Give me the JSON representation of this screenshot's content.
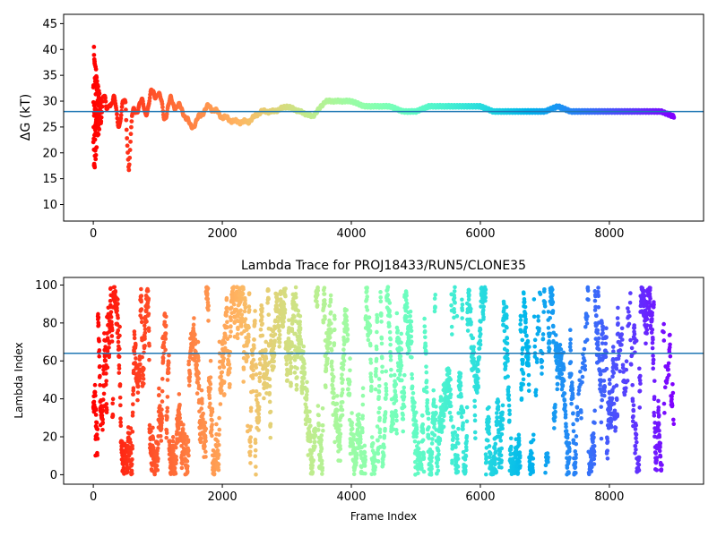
{
  "chart_data": [
    {
      "type": "scatter",
      "title": "",
      "xlabel": "",
      "ylabel": "ΔG (kT)",
      "xlim": [
        -460,
        9460
      ],
      "ylim": [
        6.8,
        46.8
      ],
      "x_ticks": [
        0,
        2000,
        4000,
        6000,
        8000
      ],
      "y_ticks": [
        10,
        15,
        20,
        25,
        30,
        35,
        40,
        45
      ],
      "hline": 28.0,
      "grid": false,
      "colormap": "rainbow (red at frame 0 → violet at last frame)",
      "x_range": [
        0,
        9000
      ],
      "series": [
        {
          "x": [
            0,
            20,
            40,
            60,
            80,
            100,
            150,
            200,
            250,
            300,
            400,
            500,
            550,
            600,
            700,
            800,
            900,
            1000,
            1100,
            1200,
            1300,
            1400,
            1500,
            1600,
            1700,
            1800,
            2000,
            2200,
            2400,
            2600,
            2800,
            3000,
            3200,
            3400,
            3600,
            3800,
            4000,
            4200,
            4400,
            4600,
            4800,
            5000,
            5200,
            5400,
            5600,
            5800,
            6000,
            6200,
            6400,
            6600,
            6800,
            7000,
            7200,
            7400,
            7600,
            7800,
            8000,
            8200,
            8400,
            8600,
            8800,
            9000
          ],
          "y": [
            22,
            35,
            26,
            31,
            24,
            28,
            30,
            27,
            32,
            29,
            27,
            29,
            18,
            26,
            30,
            28,
            31,
            32,
            27,
            30,
            29,
            28,
            25,
            26,
            28,
            29,
            27,
            26,
            26,
            28,
            28,
            29,
            28,
            27,
            30,
            30,
            30,
            29,
            29,
            29,
            28,
            28,
            29,
            29,
            29,
            29,
            29,
            28,
            28,
            28,
            28,
            28,
            29,
            28,
            28,
            28,
            28,
            28,
            28,
            28,
            28,
            27
          ]
        }
      ]
    },
    {
      "type": "scatter",
      "title": "Lambda Trace for PROJ18433/RUN5/CLONE35",
      "xlabel": "Frame Index",
      "ylabel": "Lambda Index",
      "xlim": [
        -460,
        9460
      ],
      "ylim": [
        -5,
        104
      ],
      "x_ticks": [
        0,
        2000,
        4000,
        6000,
        8000
      ],
      "y_ticks": [
        0,
        20,
        40,
        60,
        80,
        100
      ],
      "hline": 64,
      "grid": false,
      "colormap": "rainbow (red at frame 0 → violet at last frame)",
      "x_range": [
        0,
        9000
      ],
      "value_range": [
        0,
        99
      ]
    }
  ]
}
